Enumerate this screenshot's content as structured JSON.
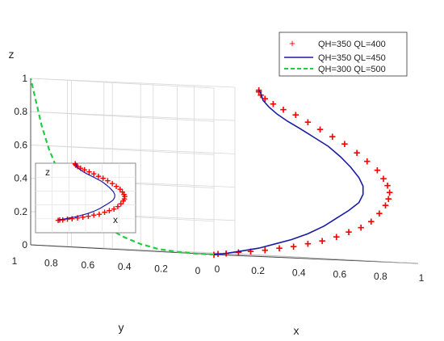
{
  "chart_data": {
    "type": "line",
    "projection": "3d",
    "grid": true,
    "legend_placement": "top-right",
    "axes": {
      "xlabel": "x",
      "ylabel": "y",
      "zlabel": "z",
      "xlim": [
        0,
        1
      ],
      "ylim": [
        0,
        1
      ],
      "zlim": [
        0,
        1
      ],
      "xticks": [
        "0",
        "0.2",
        "0.4",
        "0.6",
        "0.8",
        "1"
      ],
      "yticks": [
        "0",
        "0.2",
        "0.4",
        "0.6",
        "0.8",
        "1"
      ],
      "zticks": [
        "0",
        "0.2",
        "0.4",
        "0.6",
        "0.8",
        "1"
      ]
    },
    "inset": {
      "xlabel": "x",
      "zlabel": "z"
    },
    "series": [
      {
        "name": "QH=350 QL=400",
        "color": "#ff0000",
        "marker": "+",
        "points": [
          [
            0.0,
            0.0,
            0.0
          ],
          [
            0.02,
            0.0,
            0.005
          ],
          [
            0.06,
            0.0,
            0.01
          ],
          [
            0.12,
            0.0,
            0.02
          ],
          [
            0.18,
            0.0,
            0.03
          ],
          [
            0.25,
            0.0,
            0.04
          ],
          [
            0.32,
            0.0,
            0.055
          ],
          [
            0.39,
            0.0,
            0.07
          ],
          [
            0.46,
            0.0,
            0.09
          ],
          [
            0.53,
            0.0,
            0.11
          ],
          [
            0.6,
            0.0,
            0.14
          ],
          [
            0.66,
            0.0,
            0.17
          ],
          [
            0.72,
            0.0,
            0.2
          ],
          [
            0.77,
            0.0,
            0.24
          ],
          [
            0.81,
            0.0,
            0.29
          ],
          [
            0.84,
            0.0,
            0.34
          ],
          [
            0.855,
            0.0,
            0.38
          ],
          [
            0.86,
            0.0,
            0.42
          ],
          [
            0.85,
            0.0,
            0.46
          ],
          [
            0.83,
            0.0,
            0.5
          ],
          [
            0.8,
            0.0,
            0.55
          ],
          [
            0.75,
            0.0,
            0.6
          ],
          [
            0.7,
            0.0,
            0.65
          ],
          [
            0.64,
            0.0,
            0.7
          ],
          [
            0.58,
            0.0,
            0.74
          ],
          [
            0.52,
            0.0,
            0.78
          ],
          [
            0.46,
            0.0,
            0.82
          ],
          [
            0.4,
            0.0,
            0.86
          ],
          [
            0.34,
            0.0,
            0.89
          ],
          [
            0.29,
            0.0,
            0.92
          ],
          [
            0.25,
            0.0,
            0.95
          ],
          [
            0.23,
            0.0,
            0.97
          ],
          [
            0.22,
            0.0,
            0.99
          ],
          [
            0.22,
            0.0,
            1.0
          ]
        ]
      },
      {
        "name": "QH=350 QL=450",
        "color": "#1a1aa6",
        "marker": "",
        "points": [
          [
            0.0,
            0.0,
            0.0
          ],
          [
            0.06,
            0.0,
            0.01
          ],
          [
            0.14,
            0.0,
            0.03
          ],
          [
            0.22,
            0.0,
            0.05
          ],
          [
            0.3,
            0.0,
            0.08
          ],
          [
            0.38,
            0.0,
            0.11
          ],
          [
            0.46,
            0.0,
            0.15
          ],
          [
            0.54,
            0.0,
            0.2
          ],
          [
            0.6,
            0.0,
            0.25
          ],
          [
            0.66,
            0.0,
            0.3
          ],
          [
            0.71,
            0.0,
            0.35
          ],
          [
            0.73,
            0.0,
            0.4
          ],
          [
            0.73,
            0.0,
            0.45
          ],
          [
            0.71,
            0.0,
            0.5
          ],
          [
            0.67,
            0.0,
            0.56
          ],
          [
            0.62,
            0.0,
            0.62
          ],
          [
            0.56,
            0.0,
            0.68
          ],
          [
            0.49,
            0.0,
            0.73
          ],
          [
            0.42,
            0.0,
            0.78
          ],
          [
            0.36,
            0.0,
            0.82
          ],
          [
            0.31,
            0.0,
            0.86
          ],
          [
            0.27,
            0.0,
            0.9
          ],
          [
            0.24,
            0.0,
            0.94
          ],
          [
            0.23,
            0.0,
            0.98
          ],
          [
            0.22,
            0.0,
            1.0
          ]
        ]
      },
      {
        "name": "QH=300 QL=500",
        "color": "#22cc44",
        "marker": "",
        "dash": "dashed",
        "points": [
          [
            0.0,
            0.0,
            0.0
          ],
          [
            0.0,
            0.1,
            0.0
          ],
          [
            0.0,
            0.2,
            0.005
          ],
          [
            0.0,
            0.3,
            0.015
          ],
          [
            0.0,
            0.4,
            0.04
          ],
          [
            0.0,
            0.5,
            0.08
          ],
          [
            0.0,
            0.6,
            0.14
          ],
          [
            0.0,
            0.7,
            0.22
          ],
          [
            0.0,
            0.78,
            0.32
          ],
          [
            0.0,
            0.85,
            0.45
          ],
          [
            0.0,
            0.9,
            0.58
          ],
          [
            0.0,
            0.94,
            0.72
          ],
          [
            0.0,
            0.97,
            0.86
          ],
          [
            0.0,
            1.0,
            1.0
          ]
        ]
      }
    ]
  }
}
